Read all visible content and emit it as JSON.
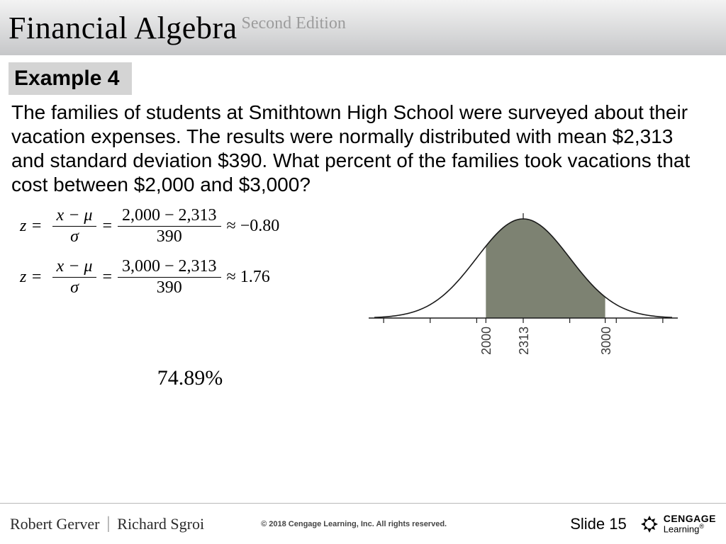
{
  "header": {
    "title": "Financial Algebra",
    "edition": "Second Edition"
  },
  "example_label": "Example 4",
  "problem": "The families of students at Smithtown High School were surveyed about their vacation expenses. The results were normally distributed with mean $2,313 and standard deviation $390. What percent of the families took vacations that cost between $2,000 and $3,000?",
  "formulas": {
    "line1": {
      "prefix": "z =",
      "frac1_num": "x − μ",
      "frac1_den": "σ",
      "mid": "=",
      "frac2_num": "2,000 − 2,313",
      "frac2_den": "390",
      "approx": "≈ −0.80"
    },
    "line2": {
      "prefix": "z =",
      "frac1_num": "x − μ",
      "frac1_den": "σ",
      "mid": "=",
      "frac2_num": "3,000 − 2,313",
      "frac2_den": "390",
      "approx": "≈ 1.76"
    }
  },
  "result_percent": "74.89%",
  "bell": {
    "mean": 2313,
    "sd": 390,
    "shade_from": 2000,
    "shade_to": 3000,
    "shade_color": "#7d8272",
    "line_color": "#1a1a1a",
    "axis_ticks": [
      1143,
      1533,
      1923,
      2000,
      2313,
      2703,
      3000,
      3093,
      3483
    ],
    "tick_labels": [
      {
        "value": 2000,
        "text": "2000"
      },
      {
        "value": 2313,
        "text": "2313"
      },
      {
        "value": 3000,
        "text": "3000"
      }
    ]
  },
  "footer": {
    "author1": "Robert Gerver",
    "author2": "Richard Sgroi",
    "copyright": "© 2018 Cengage Learning, Inc. All rights reserved.",
    "slide": "Slide 15",
    "logo_top": "CENGAGE",
    "logo_bottom": "Learning"
  }
}
